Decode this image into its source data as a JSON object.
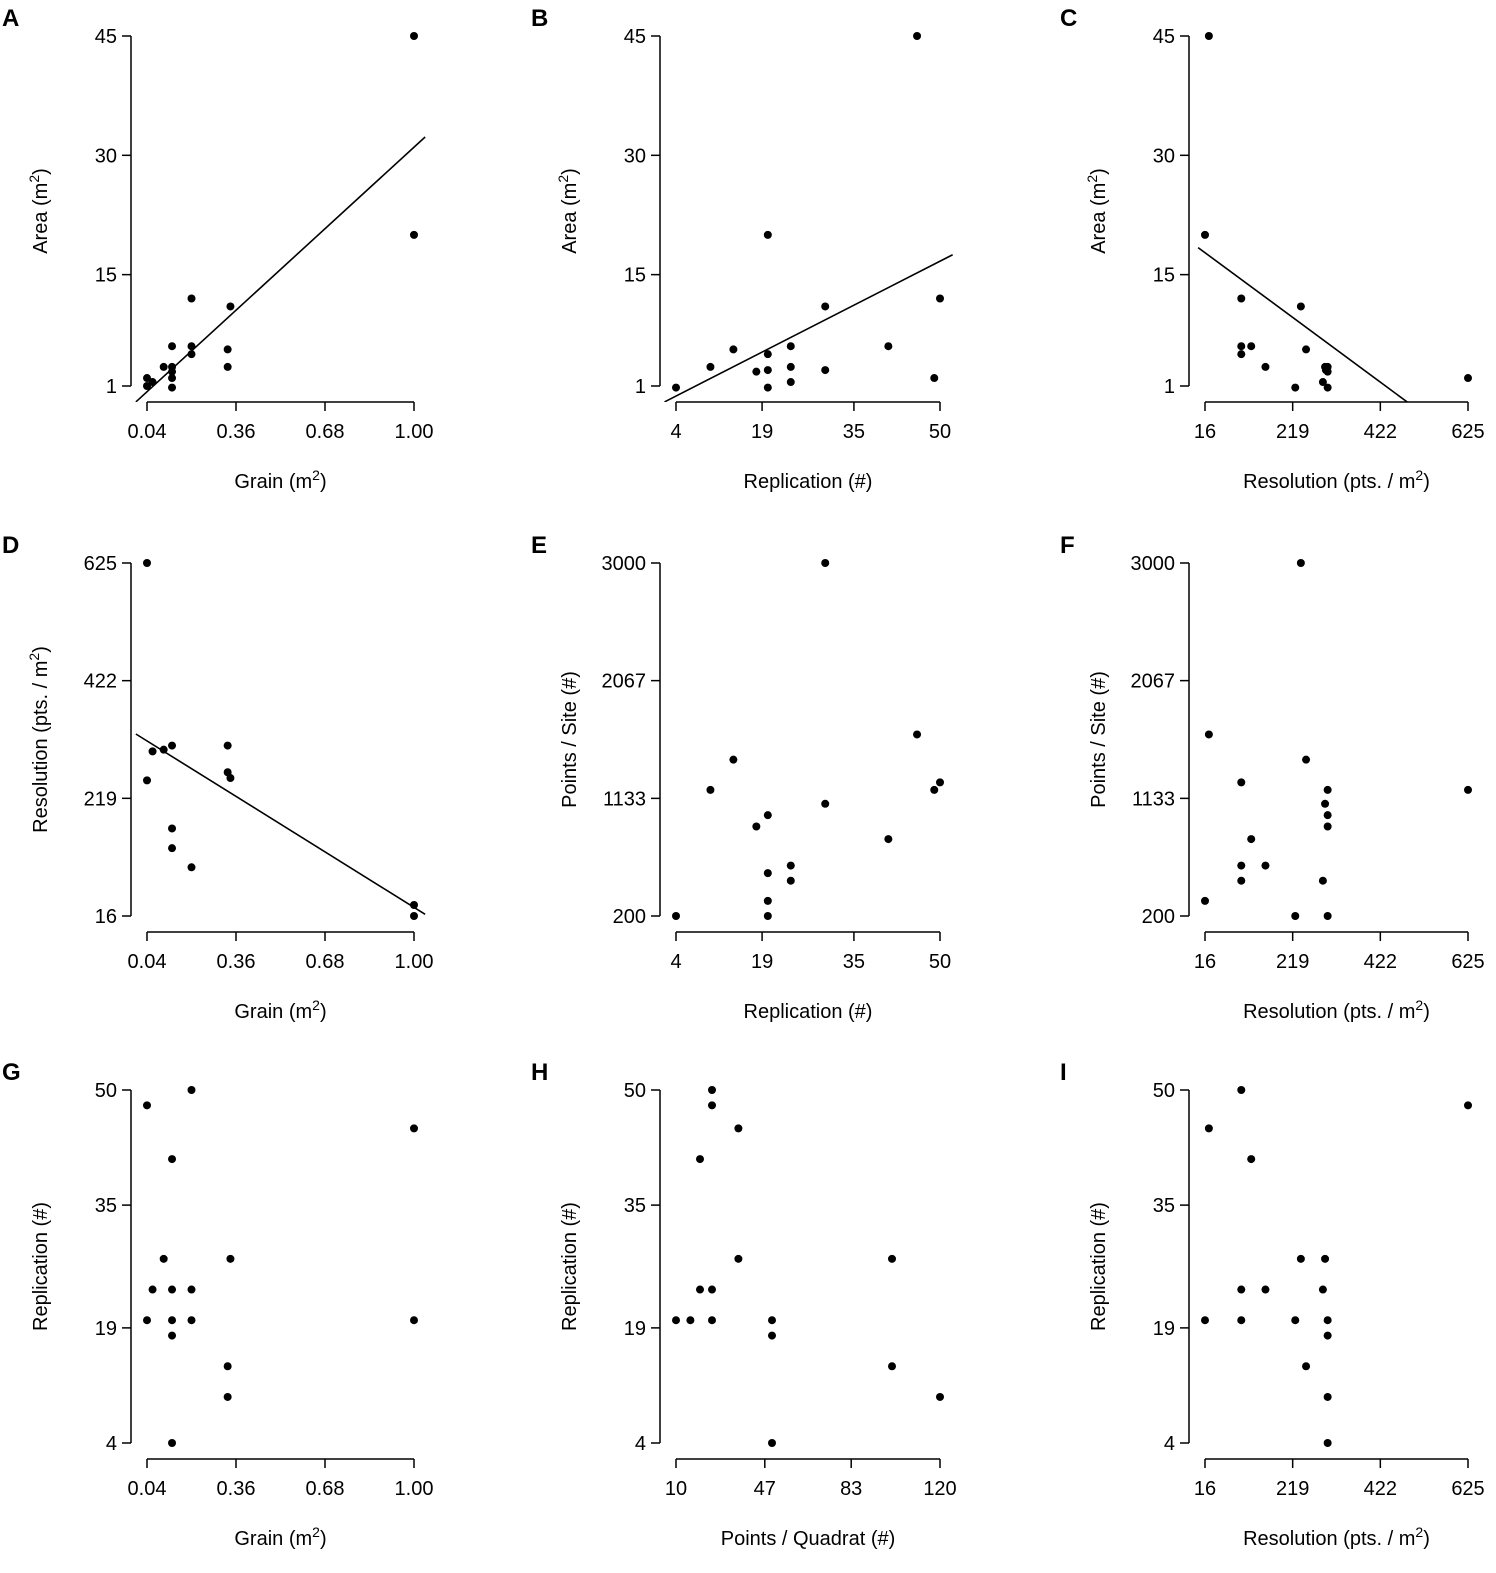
{
  "figure": {
    "panel_count": 9
  },
  "chart_data": [
    {
      "panel": "A",
      "type": "scatter",
      "xlabel": "Grain (m",
      "xlabel_sup": "2",
      "xlabel_tail": ")",
      "ylabel": "Area (m",
      "ylabel_sup": "2",
      "ylabel_tail": ")",
      "xticks": [
        0.04,
        0.36,
        0.68,
        1.0
      ],
      "xtick_labels": [
        "0.04",
        "0.36",
        "0.68",
        "1.00"
      ],
      "yticks": [
        1,
        15,
        30,
        45
      ],
      "ytick_labels": [
        "1",
        "15",
        "30",
        "45"
      ],
      "xlim": [
        0.04,
        1.0
      ],
      "ylim": [
        1,
        45
      ],
      "points": [
        [
          0.04,
          2.0
        ],
        [
          0.04,
          1.0
        ],
        [
          0.06,
          1.5
        ],
        [
          0.1,
          3.4
        ],
        [
          0.13,
          6.0
        ],
        [
          0.13,
          3.4
        ],
        [
          0.13,
          2.8
        ],
        [
          0.13,
          2.0
        ],
        [
          0.13,
          0.8
        ],
        [
          0.2,
          12.0
        ],
        [
          0.2,
          6.0
        ],
        [
          0.2,
          5.0
        ],
        [
          0.33,
          5.6
        ],
        [
          0.33,
          3.4
        ],
        [
          0.34,
          11.0
        ],
        [
          1.0,
          45.0
        ],
        [
          1.0,
          20.0
        ]
      ],
      "fit": {
        "x1": 0.0,
        "y1": -1.0,
        "x2": 1.04,
        "y2": 32.3
      }
    },
    {
      "panel": "B",
      "type": "scatter",
      "xlabel": "Replication (#)",
      "xlabel_sup": "",
      "xlabel_tail": "",
      "ylabel": "Area (m",
      "ylabel_sup": "2",
      "ylabel_tail": ")",
      "xticks": [
        4,
        19,
        35,
        50
      ],
      "xtick_labels": [
        "4",
        "19",
        "35",
        "50"
      ],
      "yticks": [
        1,
        15,
        30,
        45
      ],
      "ytick_labels": [
        "1",
        "15",
        "30",
        "45"
      ],
      "xlim": [
        4,
        50
      ],
      "ylim": [
        1,
        45
      ],
      "points": [
        [
          4,
          0.8
        ],
        [
          10,
          3.4
        ],
        [
          14,
          5.6
        ],
        [
          18,
          2.8
        ],
        [
          20,
          20.0
        ],
        [
          20,
          5.0
        ],
        [
          20,
          3.0
        ],
        [
          20,
          0.8
        ],
        [
          24,
          6.0
        ],
        [
          24,
          3.4
        ],
        [
          24,
          1.5
        ],
        [
          30,
          11.0
        ],
        [
          30,
          3.0
        ],
        [
          41,
          6.0
        ],
        [
          46,
          45.0
        ],
        [
          49,
          2.0
        ],
        [
          50,
          12.0
        ]
      ],
      "fit": {
        "x1": 2.0,
        "y1": -1.0,
        "x2": 52.2,
        "y2": 17.5
      }
    },
    {
      "panel": "C",
      "type": "scatter",
      "xlabel": "Resolution (pts. / m",
      "xlabel_sup": "2",
      "xlabel_tail": ")",
      "ylabel": "Area (m",
      "ylabel_sup": "2",
      "ylabel_tail": ")",
      "xticks": [
        16,
        219,
        422,
        625
      ],
      "xtick_labels": [
        "16",
        "219",
        "422",
        "625"
      ],
      "yticks": [
        1,
        15,
        30,
        45
      ],
      "ytick_labels": [
        "1",
        "15",
        "30",
        "45"
      ],
      "xlim": [
        16,
        625
      ],
      "ylim": [
        1,
        45
      ],
      "points": [
        [
          16,
          20.0
        ],
        [
          25,
          45.0
        ],
        [
          100,
          12.0
        ],
        [
          100,
          6.0
        ],
        [
          100,
          5.0
        ],
        [
          123,
          6.0
        ],
        [
          156,
          3.4
        ],
        [
          225,
          0.8
        ],
        [
          238,
          11.0
        ],
        [
          250,
          5.6
        ],
        [
          289,
          1.5
        ],
        [
          294,
          3.4
        ],
        [
          296,
          3.0
        ],
        [
          300,
          0.8
        ],
        [
          300,
          2.8
        ],
        [
          300,
          3.4
        ],
        [
          625,
          2.0
        ]
      ],
      "fit": {
        "x1": 0.0,
        "y1": 18.4,
        "x2": 484.0,
        "y2": -1.0
      }
    },
    {
      "panel": "D",
      "type": "scatter",
      "xlabel": "Grain (m",
      "xlabel_sup": "2",
      "xlabel_tail": ")",
      "ylabel": "Resolution (pts. / m",
      "ylabel_sup": "2",
      "ylabel_tail": ")",
      "xticks": [
        0.04,
        0.36,
        0.68,
        1.0
      ],
      "xtick_labels": [
        "0.04",
        "0.36",
        "0.68",
        "1.00"
      ],
      "yticks": [
        16,
        219,
        422,
        625
      ],
      "ytick_labels": [
        "16",
        "219",
        "422",
        "625"
      ],
      "xlim": [
        0.04,
        1.0
      ],
      "ylim": [
        16,
        625
      ],
      "points": [
        [
          0.04,
          625
        ],
        [
          0.04,
          250
        ],
        [
          0.06,
          300
        ],
        [
          0.1,
          303
        ],
        [
          0.13,
          310
        ],
        [
          0.13,
          167
        ],
        [
          0.13,
          133
        ],
        [
          0.2,
          100
        ],
        [
          0.33,
          310
        ],
        [
          0.33,
          264
        ],
        [
          0.34,
          254
        ],
        [
          1.0,
          35
        ],
        [
          1.0,
          16
        ]
      ],
      "fit": {
        "x1": 0.0,
        "y1": 330.0,
        "x2": 1.04,
        "y2": 19.0
      }
    },
    {
      "panel": "E",
      "type": "scatter",
      "xlabel": "Replication (#)",
      "xlabel_sup": "",
      "xlabel_tail": "",
      "ylabel": "Points / Site (#)",
      "ylabel_sup": "",
      "ylabel_tail": "",
      "xticks": [
        4,
        19,
        35,
        50
      ],
      "xtick_labels": [
        "4",
        "19",
        "35",
        "50"
      ],
      "yticks": [
        200,
        1133,
        2067,
        3000
      ],
      "ytick_labels": [
        "200",
        "1133",
        "2067",
        "3000"
      ],
      "xlim": [
        4,
        50
      ],
      "ylim": [
        200,
        3000
      ],
      "points": [
        [
          4,
          200
        ],
        [
          10,
          1200
        ],
        [
          14,
          1440
        ],
        [
          18,
          910
        ],
        [
          20,
          1000
        ],
        [
          20,
          540
        ],
        [
          20,
          320
        ],
        [
          20,
          200
        ],
        [
          24,
          600
        ],
        [
          24,
          480
        ],
        [
          30,
          3000
        ],
        [
          30,
          1090
        ],
        [
          41,
          810
        ],
        [
          46,
          1640
        ],
        [
          49,
          1200
        ],
        [
          50,
          1260
        ]
      ],
      "fit": null
    },
    {
      "panel": "F",
      "type": "scatter",
      "xlabel": "Resolution (pts. / m",
      "xlabel_sup": "2",
      "xlabel_tail": ")",
      "ylabel": "Points / Site (#)",
      "ylabel_sup": "",
      "ylabel_tail": "",
      "xticks": [
        16,
        219,
        422,
        625
      ],
      "xtick_labels": [
        "16",
        "219",
        "422",
        "625"
      ],
      "yticks": [
        200,
        1133,
        2067,
        3000
      ],
      "ytick_labels": [
        "200",
        "1133",
        "2067",
        "3000"
      ],
      "xlim": [
        16,
        625
      ],
      "ylim": [
        200,
        3000
      ],
      "points": [
        [
          16,
          320
        ],
        [
          25,
          1640
        ],
        [
          100,
          1260
        ],
        [
          100,
          600
        ],
        [
          100,
          480
        ],
        [
          123,
          810
        ],
        [
          156,
          600
        ],
        [
          225,
          200
        ],
        [
          238,
          3000
        ],
        [
          250,
          1440
        ],
        [
          289,
          480
        ],
        [
          294,
          1090
        ],
        [
          300,
          1200
        ],
        [
          300,
          1000
        ],
        [
          300,
          910
        ],
        [
          300,
          200
        ],
        [
          625,
          1200
        ]
      ],
      "fit": null
    },
    {
      "panel": "G",
      "type": "scatter",
      "xlabel": "Grain (m",
      "xlabel_sup": "2",
      "xlabel_tail": ")",
      "ylabel": "Replication (#)",
      "ylabel_sup": "",
      "ylabel_tail": "",
      "xticks": [
        0.04,
        0.36,
        0.68,
        1.0
      ],
      "xtick_labels": [
        "0.04",
        "0.36",
        "0.68",
        "1.00"
      ],
      "yticks": [
        4,
        19,
        35,
        50
      ],
      "ytick_labels": [
        "4",
        "19",
        "35",
        "50"
      ],
      "xlim": [
        0.04,
        1.0
      ],
      "ylim": [
        4,
        50
      ],
      "points": [
        [
          0.04,
          48
        ],
        [
          0.04,
          20
        ],
        [
          0.06,
          24
        ],
        [
          0.1,
          28
        ],
        [
          0.13,
          41
        ],
        [
          0.13,
          24
        ],
        [
          0.13,
          20
        ],
        [
          0.13,
          18
        ],
        [
          0.13,
          4
        ],
        [
          0.2,
          50
        ],
        [
          0.2,
          24
        ],
        [
          0.2,
          20
        ],
        [
          0.33,
          14
        ],
        [
          0.33,
          10
        ],
        [
          0.34,
          28
        ],
        [
          1.0,
          45
        ],
        [
          1.0,
          20
        ]
      ],
      "fit": null
    },
    {
      "panel": "H",
      "type": "scatter",
      "xlabel": "Points / Quadrat (#)",
      "xlabel_sup": "",
      "xlabel_tail": "",
      "ylabel": "Replication (#)",
      "ylabel_sup": "",
      "ylabel_tail": "",
      "xticks": [
        10,
        47,
        83,
        120
      ],
      "xtick_labels": [
        "10",
        "47",
        "83",
        "120"
      ],
      "yticks": [
        4,
        19,
        35,
        50
      ],
      "ytick_labels": [
        "4",
        "19",
        "35",
        "50"
      ],
      "xlim": [
        10,
        120
      ],
      "ylim": [
        4,
        50
      ],
      "points": [
        [
          10,
          20
        ],
        [
          16,
          20
        ],
        [
          20,
          41
        ],
        [
          20,
          24
        ],
        [
          25,
          50
        ],
        [
          25,
          48
        ],
        [
          25,
          24
        ],
        [
          25,
          20
        ],
        [
          36,
          45
        ],
        [
          36,
          28
        ],
        [
          50,
          20
        ],
        [
          50,
          18
        ],
        [
          50,
          4
        ],
        [
          100,
          28
        ],
        [
          100,
          14
        ],
        [
          120,
          10
        ]
      ],
      "fit": null
    },
    {
      "panel": "I",
      "type": "scatter",
      "xlabel": "Resolution (pts. / m",
      "xlabel_sup": "2",
      "xlabel_tail": ")",
      "ylabel": "Replication (#)",
      "ylabel_sup": "",
      "ylabel_tail": "",
      "xticks": [
        16,
        219,
        422,
        625
      ],
      "xtick_labels": [
        "16",
        "219",
        "422",
        "625"
      ],
      "yticks": [
        4,
        19,
        35,
        50
      ],
      "ytick_labels": [
        "4",
        "19",
        "35",
        "50"
      ],
      "xlim": [
        16,
        625
      ],
      "ylim": [
        4,
        50
      ],
      "points": [
        [
          16,
          20
        ],
        [
          25,
          45
        ],
        [
          100,
          50
        ],
        [
          100,
          24
        ],
        [
          100,
          20
        ],
        [
          123,
          41
        ],
        [
          156,
          24
        ],
        [
          225,
          20
        ],
        [
          238,
          28
        ],
        [
          250,
          14
        ],
        [
          289,
          24
        ],
        [
          294,
          28
        ],
        [
          300,
          20
        ],
        [
          300,
          18
        ],
        [
          300,
          10
        ],
        [
          300,
          4
        ],
        [
          625,
          48
        ]
      ],
      "fit": null
    }
  ]
}
